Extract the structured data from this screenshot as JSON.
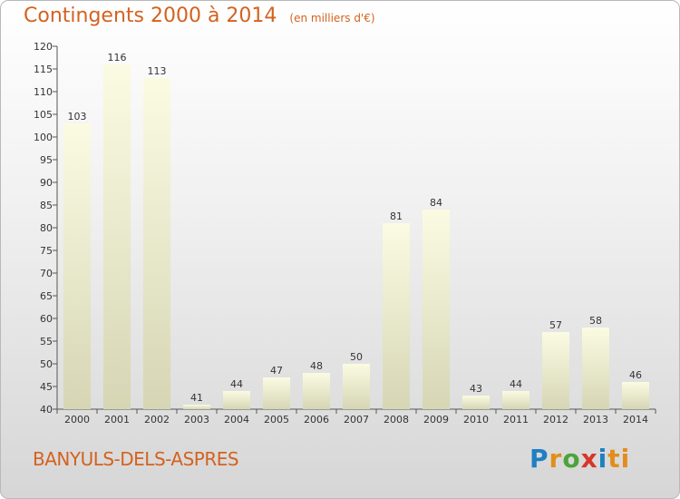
{
  "header": {
    "title": "Contingents 2000 à 2014",
    "unit": "(en milliers d'€)"
  },
  "footer": {
    "city": "BANYULS-DELS-ASPRES",
    "logo": [
      "P",
      "r",
      "o",
      "x",
      "i",
      "ti"
    ]
  },
  "colors": {
    "title": "#d4621f",
    "bar_top": "#fbfbe3",
    "bar_bottom": "#d6d6b5"
  },
  "chart_data": {
    "type": "bar",
    "title": "Contingents 2000 à 2014",
    "subtitle": "(en milliers d'€)",
    "categories": [
      "2000",
      "2001",
      "2002",
      "2003",
      "2004",
      "2005",
      "2006",
      "2007",
      "2008",
      "2009",
      "2010",
      "2011",
      "2012",
      "2013",
      "2014"
    ],
    "values": [
      103,
      116,
      113,
      41,
      44,
      47,
      48,
      50,
      81,
      84,
      43,
      44,
      57,
      58,
      46
    ],
    "ylim": [
      40,
      120
    ],
    "yticks": [
      40,
      45,
      50,
      55,
      60,
      65,
      70,
      75,
      80,
      85,
      90,
      95,
      100,
      105,
      110,
      115,
      120
    ],
    "xlabel": "",
    "ylabel": "",
    "grid": false,
    "legend": "none"
  }
}
